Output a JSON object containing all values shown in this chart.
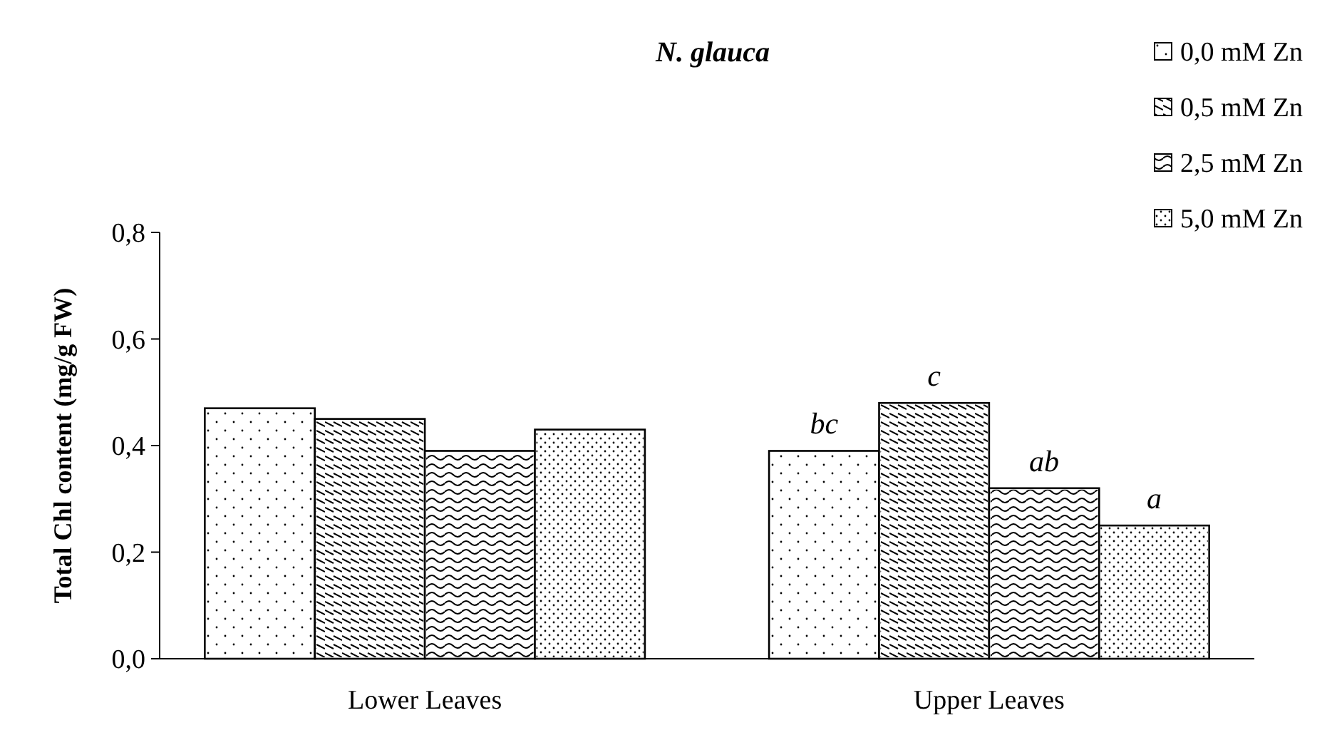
{
  "chart_data": {
    "type": "bar",
    "title": "N. glauca",
    "ylabel": "Total Chl content (mg/g FW)",
    "categories": [
      "Lower Leaves",
      "Upper Leaves"
    ],
    "series": [
      {
        "name": "0,0 mM Zn",
        "color": "#ffffff",
        "values": [
          0.47,
          0.39
        ],
        "value_labels": [
          null,
          "bc"
        ]
      },
      {
        "name": "0,5 mM Zn",
        "color": "#ffffff",
        "values": [
          0.45,
          0.48
        ],
        "value_labels": [
          null,
          "c"
        ]
      },
      {
        "name": "2,5 mM Zn",
        "color": "#ffffff",
        "values": [
          0.39,
          0.32
        ],
        "value_labels": [
          null,
          "ab"
        ]
      },
      {
        "name": "5,0 mM Zn",
        "color": "#ffffff",
        "values": [
          0.43,
          0.25
        ],
        "value_labels": [
          null,
          "a"
        ]
      }
    ],
    "ylim": [
      0,
      0.8
    ],
    "yticks": [
      {
        "value": 0,
        "label": "0,0"
      },
      {
        "value": 0.2,
        "label": "0,2"
      },
      {
        "value": 0.4,
        "label": "0,4"
      },
      {
        "value": 0.6,
        "label": "0,6"
      },
      {
        "value": 0.8,
        "label": "0,8"
      }
    ],
    "grid": false,
    "legend": "top right"
  }
}
